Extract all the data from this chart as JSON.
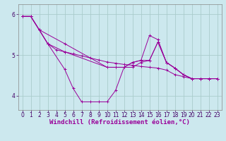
{
  "background_color": "#cce8ee",
  "line_color": "#990099",
  "grid_color": "#aacccc",
  "xlabel": "Windchill (Refroidissement éolien,°C)",
  "xlabel_fontsize": 6.5,
  "tick_fontsize": 5.5,
  "xlim": [
    -0.5,
    23.5
  ],
  "ylim": [
    3.65,
    6.25
  ],
  "yticks": [
    4,
    5,
    6
  ],
  "xticks": [
    0,
    1,
    2,
    3,
    4,
    5,
    6,
    7,
    8,
    9,
    10,
    11,
    12,
    13,
    14,
    15,
    16,
    17,
    18,
    19,
    20,
    21,
    22,
    23
  ],
  "series": [
    {
      "x": [
        0,
        1,
        3,
        5,
        6,
        7,
        8,
        9,
        10,
        11,
        12,
        13,
        14,
        15,
        16,
        17,
        18,
        19,
        20,
        21,
        22,
        23
      ],
      "y": [
        5.95,
        5.95,
        5.28,
        4.65,
        4.18,
        3.85,
        3.85,
        3.85,
        3.85,
        4.13,
        4.7,
        4.7,
        4.82,
        4.87,
        5.32,
        4.82,
        4.68,
        4.52,
        4.42,
        4.42,
        4.42,
        4.42
      ]
    },
    {
      "x": [
        0,
        1,
        2,
        5,
        10,
        11,
        12,
        13,
        14,
        15,
        16,
        17,
        18,
        19,
        20,
        21,
        22,
        23
      ],
      "y": [
        5.95,
        5.95,
        5.62,
        5.28,
        4.7,
        4.7,
        4.7,
        4.82,
        4.87,
        4.87,
        5.32,
        4.82,
        4.68,
        4.52,
        4.42,
        4.42,
        4.42,
        4.42
      ]
    },
    {
      "x": [
        0,
        1,
        2,
        3,
        5,
        10,
        11,
        12,
        13,
        14,
        15,
        16,
        17,
        18,
        19,
        20,
        21,
        22,
        23
      ],
      "y": [
        5.95,
        5.95,
        5.62,
        5.28,
        5.08,
        4.7,
        4.7,
        4.7,
        4.82,
        4.87,
        5.48,
        5.38,
        4.82,
        4.68,
        4.52,
        4.42,
        4.42,
        4.42,
        4.42
      ]
    },
    {
      "x": [
        0,
        1,
        2,
        3,
        4,
        5,
        6,
        7,
        8,
        9,
        10,
        11,
        12,
        13,
        14,
        15,
        16,
        17,
        18,
        19,
        20,
        21,
        22,
        23
      ],
      "y": [
        5.95,
        5.95,
        5.62,
        5.28,
        5.13,
        5.08,
        5.03,
        4.98,
        4.93,
        4.88,
        4.83,
        4.8,
        4.77,
        4.75,
        4.72,
        4.7,
        4.68,
        4.63,
        4.52,
        4.47,
        4.42,
        4.42,
        4.42,
        4.42
      ]
    }
  ]
}
